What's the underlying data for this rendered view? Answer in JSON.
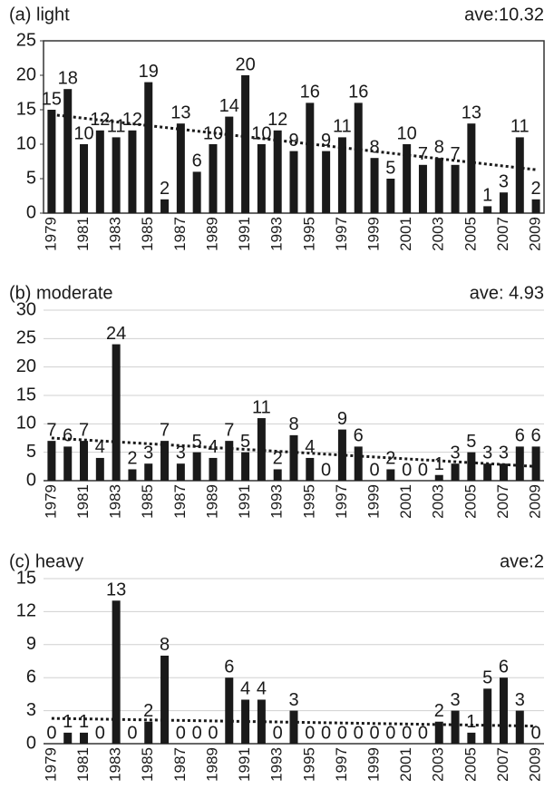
{
  "chart_data": [
    {
      "type": "bar",
      "title": "(a) light",
      "annotation": "ave:10.32",
      "categories": [
        "1979",
        null,
        "1981",
        null,
        "1983",
        null,
        "1985",
        null,
        "1987",
        null,
        "1989",
        null,
        "1991",
        null,
        "1993",
        null,
        "1995",
        null,
        "1997",
        null,
        "1999",
        null,
        "2001",
        null,
        "2003",
        null,
        "2005",
        null,
        "2007",
        null,
        "2009"
      ],
      "values": [
        15,
        18,
        10,
        12,
        11,
        12,
        19,
        2,
        13,
        6,
        10,
        14,
        20,
        10,
        12,
        9,
        16,
        9,
        11,
        16,
        8,
        5,
        10,
        7,
        8,
        7,
        13,
        1,
        3,
        11,
        2
      ],
      "color": "#1a1a1a",
      "trend": [
        14.3,
        6.3
      ],
      "ylim": [
        0,
        25
      ],
      "yticks": [
        0,
        5,
        10,
        15,
        20,
        25
      ],
      "grid": false,
      "frame": true
    },
    {
      "type": "bar",
      "title": "(b) moderate",
      "annotation": "ave: 4.93",
      "categories": [
        "1979",
        null,
        "1981",
        null,
        "1983",
        null,
        "1985",
        null,
        "1987",
        null,
        "1989",
        null,
        "1991",
        null,
        "1993",
        null,
        "1995",
        null,
        "1997",
        null,
        "1999",
        null,
        "2001",
        null,
        "2003",
        null,
        "2005",
        null,
        "2007",
        null,
        "2009"
      ],
      "values": [
        7,
        6,
        7,
        4,
        24,
        2,
        3,
        7,
        3,
        5,
        4,
        7,
        5,
        11,
        2,
        8,
        4,
        0,
        9,
        6,
        0,
        2,
        0,
        0,
        1,
        3,
        5,
        3,
        3,
        6,
        6
      ],
      "color": "#1a1a1a",
      "trend": [
        7.5,
        2.5
      ],
      "ylim": [
        0,
        30
      ],
      "yticks": [
        0,
        5,
        10,
        15,
        20,
        25,
        30
      ],
      "grid": true,
      "frame": false
    },
    {
      "type": "bar",
      "title": "(c) heavy",
      "annotation": "ave:2",
      "categories": [
        "1979",
        null,
        "1981",
        null,
        "1983",
        null,
        "1985",
        null,
        "1987",
        null,
        "1989",
        null,
        "1991",
        null,
        "1993",
        null,
        "1995",
        null,
        "1997",
        null,
        "1999",
        null,
        "2001",
        null,
        "2003",
        null,
        "2005",
        null,
        "2007",
        null,
        "2009"
      ],
      "values": [
        0,
        1,
        1,
        0,
        13,
        0,
        2,
        8,
        0,
        0,
        0,
        6,
        4,
        4,
        0,
        3,
        0,
        0,
        0,
        0,
        0,
        0,
        0,
        0,
        2,
        3,
        1,
        5,
        6,
        3,
        0
      ],
      "color": "#1a1a1a",
      "trend": [
        2.3,
        1.6
      ],
      "ylim": [
        0,
        15
      ],
      "yticks": [
        0,
        3,
        6,
        9,
        12,
        15
      ],
      "grid": true,
      "frame": false
    }
  ]
}
